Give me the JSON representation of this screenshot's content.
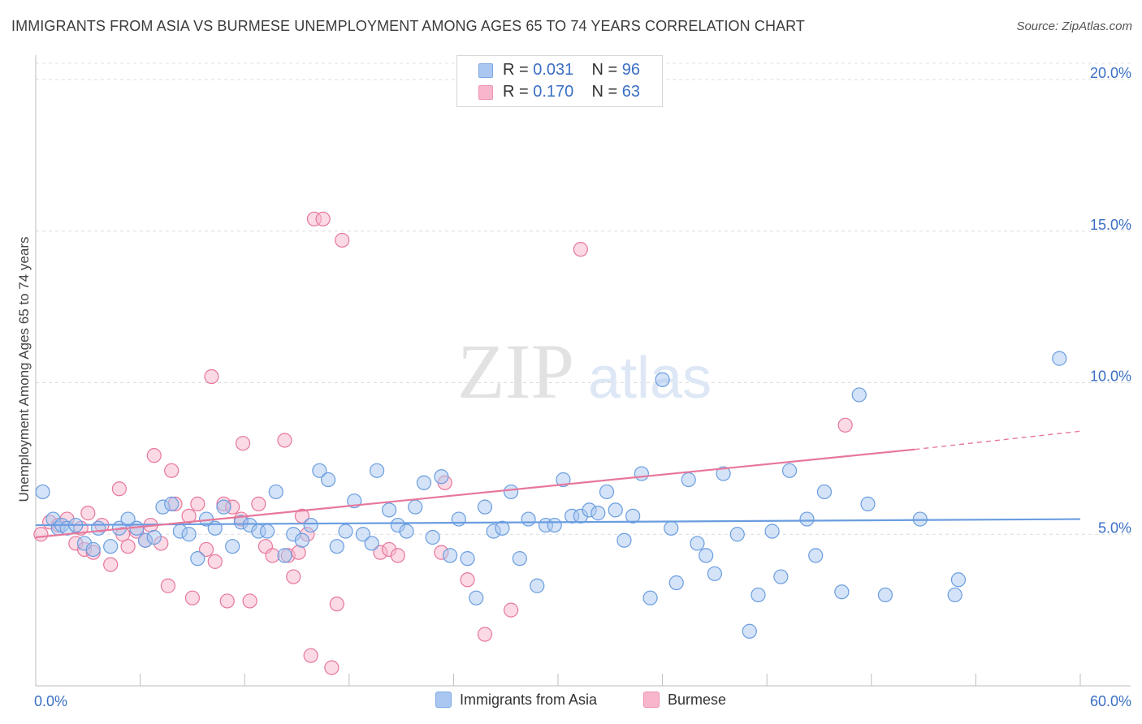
{
  "title": "IMMIGRANTS FROM ASIA VS BURMESE UNEMPLOYMENT AMONG AGES 65 TO 74 YEARS CORRELATION CHART",
  "source": "Source: ZipAtlas.com",
  "watermark": {
    "zip": "ZIP",
    "atlas": "atlas"
  },
  "legend": {
    "rows": [
      {
        "r_label": "R =",
        "r_value": "0.031",
        "n_label": "N =",
        "n_value": "96",
        "color": "#a9c7f0",
        "border": "#7fa8e3"
      },
      {
        "r_label": "R =",
        "r_value": "0.170",
        "n_label": "N =",
        "n_value": "63",
        "color": "#f7b6cb",
        "border": "#ec93b0"
      }
    ]
  },
  "bottom_legend": {
    "series1": "Immigrants from Asia",
    "series2": "Burmese"
  },
  "chart_data": {
    "type": "scatter",
    "title": "IMMIGRANTS FROM ASIA VS BURMESE UNEMPLOYMENT AMONG AGES 65 TO 74 YEARS CORRELATION CHART",
    "xlabel": "",
    "ylabel": "Unemployment Among Ages 65 to 74 years",
    "xlim": [
      0,
      60
    ],
    "ylim": [
      0,
      20
    ],
    "x_tick_labels": [
      "0.0%",
      "60.0%"
    ],
    "y_ticks": [
      5,
      10,
      15,
      20
    ],
    "y_tick_labels": [
      "5.0%",
      "10.0%",
      "15.0%",
      "20.0%"
    ],
    "grid": true,
    "series": [
      {
        "name": "Immigrants from Asia",
        "color": "#6a9de0",
        "fill": "#a9c7f0",
        "trend": {
          "x": [
            0,
            60
          ],
          "y": [
            5.3,
            5.5
          ]
        },
        "points": [
          [
            0.4,
            6.4
          ],
          [
            1.0,
            5.5
          ],
          [
            1.3,
            5.2
          ],
          [
            1.5,
            5.3
          ],
          [
            1.8,
            5.2
          ],
          [
            2.3,
            5.3
          ],
          [
            2.8,
            4.7
          ],
          [
            3.3,
            4.5
          ],
          [
            3.6,
            5.2
          ],
          [
            4.3,
            4.6
          ],
          [
            4.8,
            5.2
          ],
          [
            5.3,
            5.5
          ],
          [
            5.8,
            5.2
          ],
          [
            6.3,
            4.8
          ],
          [
            6.8,
            4.9
          ],
          [
            7.3,
            5.9
          ],
          [
            7.8,
            6.0
          ],
          [
            8.3,
            5.1
          ],
          [
            8.8,
            5.0
          ],
          [
            9.3,
            4.2
          ],
          [
            9.8,
            5.5
          ],
          [
            10.3,
            5.2
          ],
          [
            10.8,
            5.9
          ],
          [
            11.3,
            4.6
          ],
          [
            11.8,
            5.4
          ],
          [
            12.3,
            5.3
          ],
          [
            12.8,
            5.1
          ],
          [
            13.3,
            5.1
          ],
          [
            13.8,
            6.4
          ],
          [
            14.3,
            4.3
          ],
          [
            14.8,
            5.0
          ],
          [
            15.3,
            4.8
          ],
          [
            15.8,
            5.3
          ],
          [
            16.3,
            7.1
          ],
          [
            16.8,
            6.8
          ],
          [
            17.3,
            4.6
          ],
          [
            17.8,
            5.1
          ],
          [
            18.3,
            6.1
          ],
          [
            18.8,
            5.0
          ],
          [
            19.3,
            4.7
          ],
          [
            19.6,
            7.1
          ],
          [
            20.3,
            5.8
          ],
          [
            20.8,
            5.3
          ],
          [
            21.3,
            5.1
          ],
          [
            21.8,
            5.9
          ],
          [
            22.3,
            6.7
          ],
          [
            22.8,
            4.9
          ],
          [
            23.3,
            6.9
          ],
          [
            23.8,
            4.3
          ],
          [
            24.3,
            5.5
          ],
          [
            24.8,
            4.2
          ],
          [
            25.3,
            2.9
          ],
          [
            25.8,
            5.9
          ],
          [
            26.3,
            5.1
          ],
          [
            26.8,
            5.2
          ],
          [
            27.3,
            6.4
          ],
          [
            27.8,
            4.2
          ],
          [
            28.3,
            5.5
          ],
          [
            28.8,
            3.3
          ],
          [
            29.3,
            5.3
          ],
          [
            29.8,
            5.3
          ],
          [
            30.3,
            6.8
          ],
          [
            30.8,
            5.6
          ],
          [
            31.3,
            5.6
          ],
          [
            31.8,
            5.8
          ],
          [
            32.3,
            5.7
          ],
          [
            32.8,
            6.4
          ],
          [
            33.3,
            5.8
          ],
          [
            33.8,
            4.8
          ],
          [
            34.3,
            5.6
          ],
          [
            34.8,
            7.0
          ],
          [
            35.3,
            2.9
          ],
          [
            36.0,
            10.1
          ],
          [
            36.5,
            5.2
          ],
          [
            36.8,
            3.4
          ],
          [
            37.5,
            6.8
          ],
          [
            38.0,
            4.7
          ],
          [
            38.5,
            4.3
          ],
          [
            39.0,
            3.7
          ],
          [
            39.5,
            7.0
          ],
          [
            40.3,
            5.0
          ],
          [
            41.0,
            1.8
          ],
          [
            41.5,
            3.0
          ],
          [
            42.3,
            5.1
          ],
          [
            42.8,
            3.6
          ],
          [
            43.3,
            7.1
          ],
          [
            44.3,
            5.5
          ],
          [
            44.8,
            4.3
          ],
          [
            45.3,
            6.4
          ],
          [
            46.3,
            3.1
          ],
          [
            47.3,
            9.6
          ],
          [
            47.8,
            6.0
          ],
          [
            48.8,
            3.0
          ],
          [
            50.8,
            5.5
          ],
          [
            52.8,
            3.0
          ],
          [
            53.0,
            3.5
          ],
          [
            58.8,
            10.8
          ]
        ]
      },
      {
        "name": "Burmese",
        "color": "#e7779b",
        "fill": "#f7b6cb",
        "trend": {
          "x": [
            0,
            50.5
          ],
          "y": [
            4.9,
            7.8
          ]
        },
        "trend_dashed": {
          "x": [
            50.5,
            60
          ],
          "y": [
            7.8,
            8.4
          ]
        },
        "points": [
          [
            0.3,
            5.0
          ],
          [
            0.8,
            5.4
          ],
          [
            1.3,
            5.3
          ],
          [
            1.8,
            5.5
          ],
          [
            2.3,
            4.7
          ],
          [
            2.6,
            5.2
          ],
          [
            2.8,
            4.5
          ],
          [
            3.0,
            5.7
          ],
          [
            3.3,
            4.4
          ],
          [
            3.8,
            5.3
          ],
          [
            4.3,
            4.0
          ],
          [
            4.8,
            6.5
          ],
          [
            5.0,
            5.0
          ],
          [
            5.3,
            4.6
          ],
          [
            5.8,
            5.1
          ],
          [
            6.3,
            4.8
          ],
          [
            6.6,
            5.3
          ],
          [
            6.8,
            7.6
          ],
          [
            7.2,
            4.7
          ],
          [
            7.6,
            3.3
          ],
          [
            7.8,
            7.1
          ],
          [
            8.0,
            6.0
          ],
          [
            8.8,
            5.6
          ],
          [
            9.0,
            2.9
          ],
          [
            9.3,
            6.0
          ],
          [
            9.8,
            4.5
          ],
          [
            10.1,
            10.2
          ],
          [
            10.3,
            4.1
          ],
          [
            10.8,
            6.0
          ],
          [
            11.0,
            2.8
          ],
          [
            11.3,
            5.9
          ],
          [
            11.8,
            5.5
          ],
          [
            11.9,
            8.0
          ],
          [
            12.3,
            2.8
          ],
          [
            12.8,
            6.0
          ],
          [
            13.2,
            4.6
          ],
          [
            13.6,
            4.3
          ],
          [
            14.3,
            8.1
          ],
          [
            14.5,
            4.3
          ],
          [
            14.8,
            3.6
          ],
          [
            15.1,
            4.4
          ],
          [
            15.3,
            5.6
          ],
          [
            15.6,
            5.0
          ],
          [
            15.8,
            1.0
          ],
          [
            16.0,
            15.4
          ],
          [
            16.5,
            15.4
          ],
          [
            17.0,
            0.6
          ],
          [
            17.3,
            2.7
          ],
          [
            17.6,
            14.7
          ],
          [
            19.8,
            4.4
          ],
          [
            20.3,
            4.5
          ],
          [
            20.8,
            4.3
          ],
          [
            23.3,
            4.4
          ],
          [
            23.5,
            6.7
          ],
          [
            24.8,
            3.5
          ],
          [
            25.8,
            1.7
          ],
          [
            27.3,
            2.5
          ],
          [
            31.3,
            14.4
          ],
          [
            46.5,
            8.6
          ]
        ]
      }
    ]
  }
}
